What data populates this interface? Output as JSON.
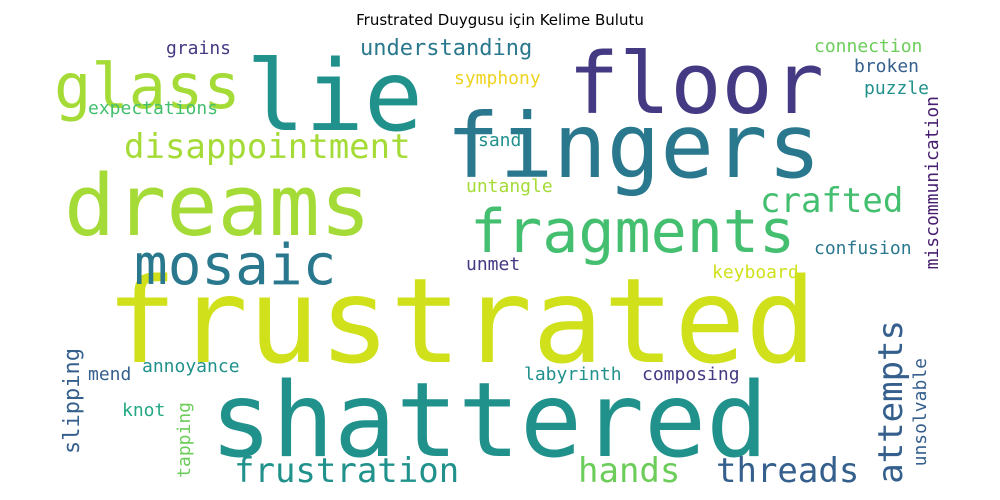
{
  "title": "Frustrated Duygusu için Kelime Bulutu",
  "colors": {
    "lime": "#d0e11c",
    "yellow_green": "#a5db36",
    "green": "#6ccd5a",
    "mint": "#44bf70",
    "teal_green": "#22a884",
    "teal": "#21918c",
    "steel_teal": "#2a788e",
    "blue": "#355f8d",
    "indigo": "#443a83",
    "purple": "#481f70"
  },
  "words": [
    "frustrated",
    "shattered",
    "fingers",
    "dreams",
    "lie",
    "floor",
    "glass",
    "fragments",
    "mosaic",
    "disappointment",
    "frustration",
    "attempts",
    "threads",
    "hands",
    "crafted",
    "understanding",
    "slipping",
    "grains",
    "expectations",
    "connection",
    "symphony",
    "broken",
    "puzzle",
    "sand",
    "miscommunication",
    "untangle",
    "confusion",
    "unmet",
    "keyboard",
    "annoyance",
    "mend",
    "labyrinth",
    "composing",
    "knot",
    "tapping",
    "unsolvable"
  ]
}
